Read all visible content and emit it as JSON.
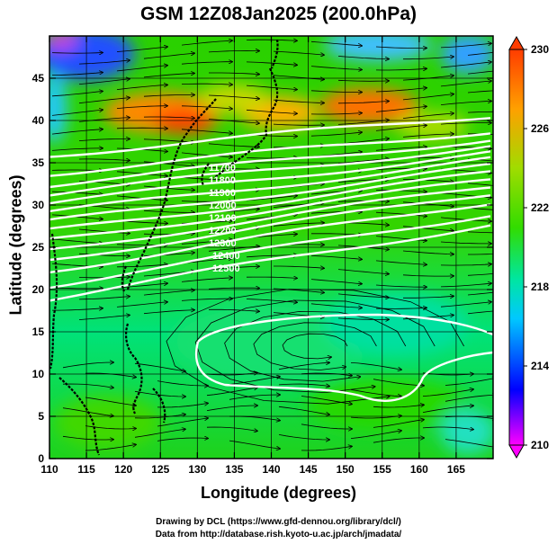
{
  "title": "GSM 12Z08Jan2025 (200.0hPa)",
  "axes": {
    "xlabel": "Longitude (degrees)",
    "ylabel": "Latitude  (degrees)",
    "x_ticks": [
      "110",
      "115",
      "120",
      "125",
      "130",
      "135",
      "140",
      "145",
      "150",
      "155",
      "160",
      "165"
    ],
    "y_ticks": [
      "0",
      "5",
      "10",
      "15",
      "20",
      "25",
      "30",
      "35",
      "40",
      "45"
    ],
    "x_range": [
      110,
      170
    ],
    "y_range": [
      0,
      50
    ]
  },
  "colorbar": {
    "labels": [
      "230",
      "226",
      "222",
      "218",
      "214",
      "210"
    ],
    "range": [
      210,
      230
    ],
    "colors": [
      "#ff00ff",
      "#0000ff",
      "#00c8ff",
      "#00e6a0",
      "#32dc00",
      "#a0dc00",
      "#ffa000",
      "#ff3c00"
    ]
  },
  "credits": {
    "line1": "Drawing by DCL (https://www.gfd-dennou.org/library/dcl/)",
    "line2": "Data from http://database.rish.kyoto-u.ac.jp/arch/jmadata/"
  },
  "contour_labels": [
    "11700",
    "11800",
    "11900",
    "12000",
    "12100",
    "12200",
    "12300",
    "12400",
    "12500"
  ]
}
